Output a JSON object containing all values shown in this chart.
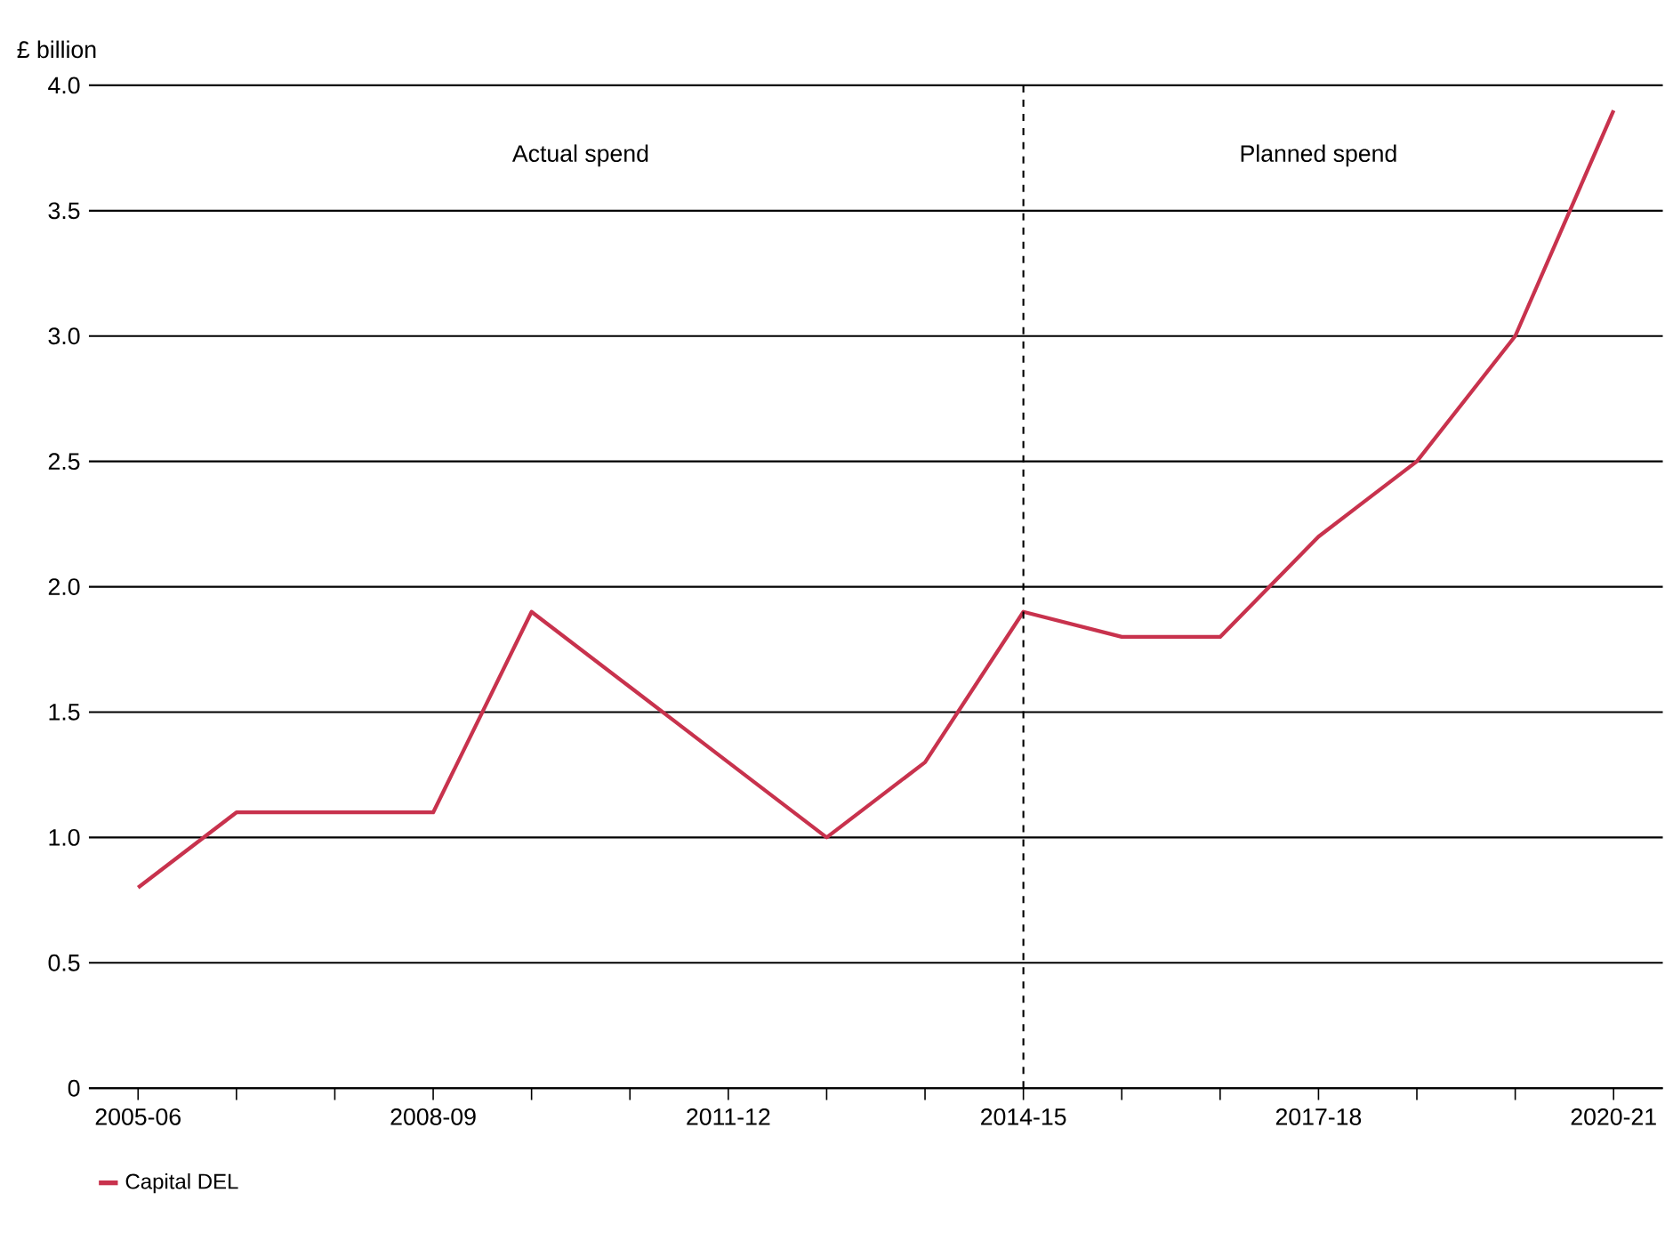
{
  "chart_data": {
    "type": "line",
    "ylabel": "£ billion",
    "categories": [
      "2005-06",
      null,
      null,
      "2008-09",
      null,
      null,
      "2011-12",
      null,
      null,
      "2014-15",
      null,
      null,
      "2017-18",
      null,
      null,
      "2020-21"
    ],
    "series": [
      {
        "name": "Capital DEL",
        "color": "#c8324d",
        "values": [
          0.8,
          1.1,
          1.1,
          1.1,
          1.9,
          1.6,
          1.3,
          1.0,
          1.3,
          1.9,
          1.8,
          1.8,
          2.2,
          2.5,
          3.0,
          3.9
        ]
      }
    ],
    "ylim": [
      0,
      4
    ],
    "yticks": [
      0,
      {
        "value": 0.5,
        "label": "0.5"
      },
      {
        "value": 1,
        "label": "1.0"
      },
      {
        "value": 1.5,
        "label": "1.5"
      },
      {
        "value": 2,
        "label": "2.0"
      },
      {
        "value": 2.5,
        "label": "2.5"
      },
      {
        "value": 3,
        "label": "3.0"
      },
      {
        "value": 3.5,
        "label": "3.5"
      },
      {
        "value": 4,
        "label": "4.0"
      }
    ],
    "grid": "y",
    "legend": "bottom left",
    "marker": "none",
    "line_style": "solid",
    "ref_lines": [
      {
        "axis": "x",
        "value": "2014-15",
        "line_style": "dashed"
      }
    ],
    "annotations": [
      "Actual spend",
      "Planned spend"
    ]
  }
}
